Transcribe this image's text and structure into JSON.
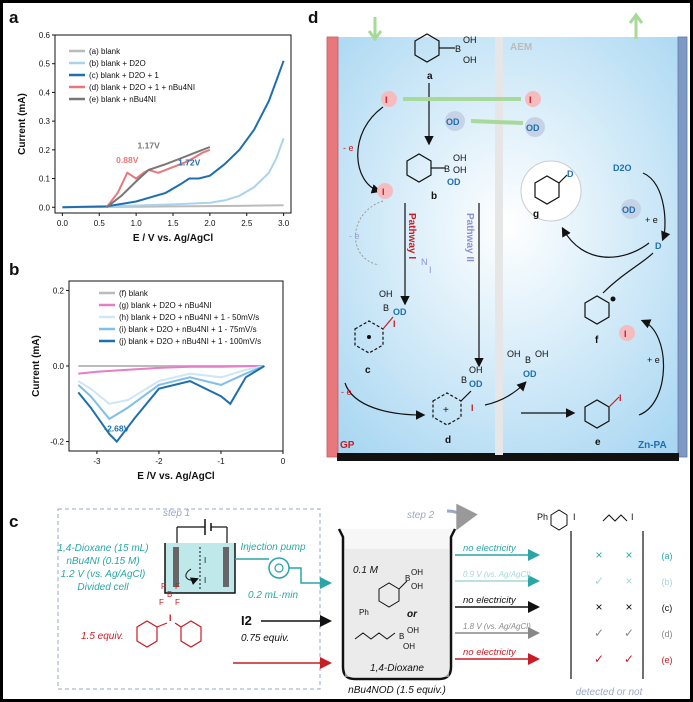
{
  "panel_a": {
    "label": "a",
    "chart_data": {
      "type": "line",
      "xlabel": "E / V  vs. Ag/AgCl",
      "ylabel": "Current (mA)",
      "xlim": [
        -0.1,
        3.1
      ],
      "ylim": [
        -0.02,
        0.6
      ],
      "xticks": [
        "0.0",
        "0.5",
        "1.0",
        "1.5",
        "2.0",
        "2.5",
        "3.0"
      ],
      "yticks": [
        "0.0",
        "0.1",
        "0.2",
        "0.3",
        "0.4",
        "0.5",
        "0.6"
      ],
      "legend_position": "top-left",
      "annotations": [
        {
          "text": "0.88V",
          "x": 0.88,
          "y": 0.12,
          "color": "#e8787c"
        },
        {
          "text": "1.17V",
          "x": 1.17,
          "y": 0.17,
          "color": "#777777"
        },
        {
          "text": "1.72V",
          "x": 1.72,
          "y": 0.11,
          "color": "#1f6fae"
        }
      ],
      "series": [
        {
          "name": "(a) blank",
          "color": "#bbbbbb",
          "x": [
            0.0,
            0.5,
            1.0,
            1.5,
            2.0,
            2.5,
            3.0
          ],
          "y": [
            0.0,
            0.001,
            0.002,
            0.003,
            0.004,
            0.005,
            0.007
          ]
        },
        {
          "name": "(b) blank + D2O",
          "color": "#a9d4ee",
          "x": [
            0.0,
            0.5,
            1.0,
            1.5,
            2.0,
            2.2,
            2.4,
            2.6,
            2.8,
            2.9,
            3.0
          ],
          "y": [
            0.0,
            0.003,
            0.006,
            0.01,
            0.016,
            0.024,
            0.04,
            0.07,
            0.12,
            0.17,
            0.24
          ]
        },
        {
          "name": "(c) blank + D2O + 1",
          "color": "#1f6fae",
          "x": [
            0.0,
            0.6,
            1.0,
            1.4,
            1.6,
            1.72,
            1.85,
            2.0,
            2.2,
            2.4,
            2.6,
            2.8,
            2.9,
            3.0
          ],
          "y": [
            0.0,
            0.003,
            0.02,
            0.05,
            0.08,
            0.1,
            0.1,
            0.11,
            0.15,
            0.2,
            0.27,
            0.37,
            0.44,
            0.51
          ]
        },
        {
          "name": "(d) blank + D2O + 1 + nBu4NI",
          "color": "#e8787c",
          "x": [
            0.6,
            0.75,
            0.88,
            1.0,
            1.1,
            1.17,
            1.3,
            1.5,
            1.7,
            1.9,
            2.0
          ],
          "y": [
            0.0,
            0.05,
            0.12,
            0.1,
            0.12,
            0.13,
            0.12,
            0.14,
            0.16,
            0.19,
            0.2
          ]
        },
        {
          "name": "(e) blank + nBu4NI",
          "color": "#777777",
          "x": [
            0.6,
            0.8,
            1.0,
            1.17,
            1.4,
            1.6,
            1.8,
            2.0
          ],
          "y": [
            0.0,
            0.04,
            0.09,
            0.13,
            0.15,
            0.17,
            0.19,
            0.21
          ]
        }
      ]
    }
  },
  "panel_b": {
    "label": "b",
    "chart_data": {
      "type": "line",
      "xlabel": "E /V  vs. Ag/AgCl",
      "ylabel": "Current (mA)",
      "xlim": [
        -3.45,
        0.0
      ],
      "ylim": [
        -0.225,
        0.225
      ],
      "xticks": [
        "-3",
        "-2",
        "-1",
        "0"
      ],
      "yticks": [
        "-0.2",
        "0.0",
        "0.2"
      ],
      "legend_position": "top-right",
      "annotations": [
        {
          "text": "-2.68V",
          "x": -2.68,
          "y": -0.2,
          "color": "#1f6fae"
        }
      ],
      "series": [
        {
          "name": "(f) blank",
          "color": "#bbbbbb",
          "x": [
            -3.3,
            -2.5,
            -1.5,
            -0.8,
            -0.3
          ],
          "y": [
            0.0,
            0.0,
            0.0,
            0.0,
            0.0
          ]
        },
        {
          "name": "(g) blank + D2O + nBu4NI",
          "color": "#e47fc6",
          "x": [
            -3.3,
            -3.0,
            -2.5,
            -2.0,
            -1.5,
            -1.0,
            -0.3
          ],
          "y": [
            -0.02,
            -0.015,
            -0.01,
            -0.005,
            -0.002,
            -0.002,
            0.0
          ]
        },
        {
          "name": "(h) blank + D2O + nBu4NI + 1 - 50mV/s",
          "color": "#cfe6f6",
          "x": [
            -3.3,
            -3.1,
            -2.8,
            -2.5,
            -2.0,
            -1.5,
            -1.0,
            -0.6,
            -0.3
          ],
          "y": [
            -0.04,
            -0.06,
            -0.1,
            -0.09,
            -0.04,
            -0.02,
            -0.03,
            -0.01,
            0.0
          ]
        },
        {
          "name": "(i) blank + D2O + nBu4NI + 1 - 75mV/s",
          "color": "#7fbfe8",
          "x": [
            -3.3,
            -3.1,
            -2.8,
            -2.5,
            -2.0,
            -1.5,
            -1.0,
            -0.6,
            -0.3
          ],
          "y": [
            -0.05,
            -0.08,
            -0.14,
            -0.11,
            -0.05,
            -0.03,
            -0.05,
            -0.02,
            0.0
          ]
        },
        {
          "name": "(j) blank + D2O + nBu4NI + 1 - 100mV/s",
          "color": "#1f6fae",
          "x": [
            -3.3,
            -3.1,
            -2.8,
            -2.68,
            -2.4,
            -2.0,
            -1.5,
            -1.0,
            -0.85,
            -0.6,
            -0.3
          ],
          "y": [
            -0.07,
            -0.11,
            -0.18,
            -0.2,
            -0.14,
            -0.06,
            -0.04,
            -0.08,
            -0.1,
            -0.03,
            0.0
          ]
        }
      ]
    }
  },
  "panel_d": {
    "label": "d",
    "membrane_label": "AEM",
    "left_electrode": "GP",
    "right_electrode": "Zn-PA",
    "pathway_1": "Pathway I",
    "pathway_2": "Pathway II",
    "minus_e": "- e",
    "minus_e_light": "- e",
    "plus_e": "+ e",
    "compounds": {
      "a": "a",
      "b": "b",
      "c": "c",
      "d": "d",
      "e": "e",
      "f": "f",
      "g": "g"
    },
    "species": {
      "iodide": "I",
      "hydroxide": "OD",
      "d2o": "D2O",
      "deuteron": "D",
      "iodine_radical": "I",
      "oh": "OH",
      "od": "OD",
      "b": "B",
      "i": "I",
      "d": "D"
    }
  },
  "panel_c": {
    "label": "c",
    "step1": "step 1",
    "step2": "step 2",
    "cell_conditions": [
      "1,4-Dioxane (15 mL)",
      "nBu4NI (0.15 M)",
      "1.2 V (vs. Ag/AgCl)",
      "Divided cell"
    ],
    "injection_pump": "Injection pump",
    "flow_rate": "0.2 mL·min",
    "i2": "I2",
    "i2_equiv": "0.75 equiv.",
    "reagent_equiv": "1.5 equiv.",
    "conc": "0.1 M",
    "or": "or",
    "ph": "Ph",
    "solvent": "1,4-Dioxane",
    "base": "nBu4NOD (1.5 equiv.)",
    "conditions": [
      "no electricity",
      "0.9 V (vs. Ag/AgCl)",
      "no electricity",
      "1.8 V (vs. Ag/AgCl)",
      "no electricity"
    ],
    "condition_colors": [
      "#2aa6a6",
      "#a6d6d6",
      "#111111",
      "#888888",
      "#c81d25"
    ],
    "product_labels": [
      "Ph",
      "I",
      "I"
    ],
    "result_marks": [
      [
        "×",
        "×"
      ],
      [
        "✓",
        "×"
      ],
      [
        "×",
        "×"
      ],
      [
        "✓",
        "✓"
      ],
      [
        "✓",
        "✓"
      ]
    ],
    "result_letters": [
      "(a)",
      "(b)",
      "(c)",
      "(d)",
      "(e)"
    ],
    "footer": "detected or not"
  }
}
